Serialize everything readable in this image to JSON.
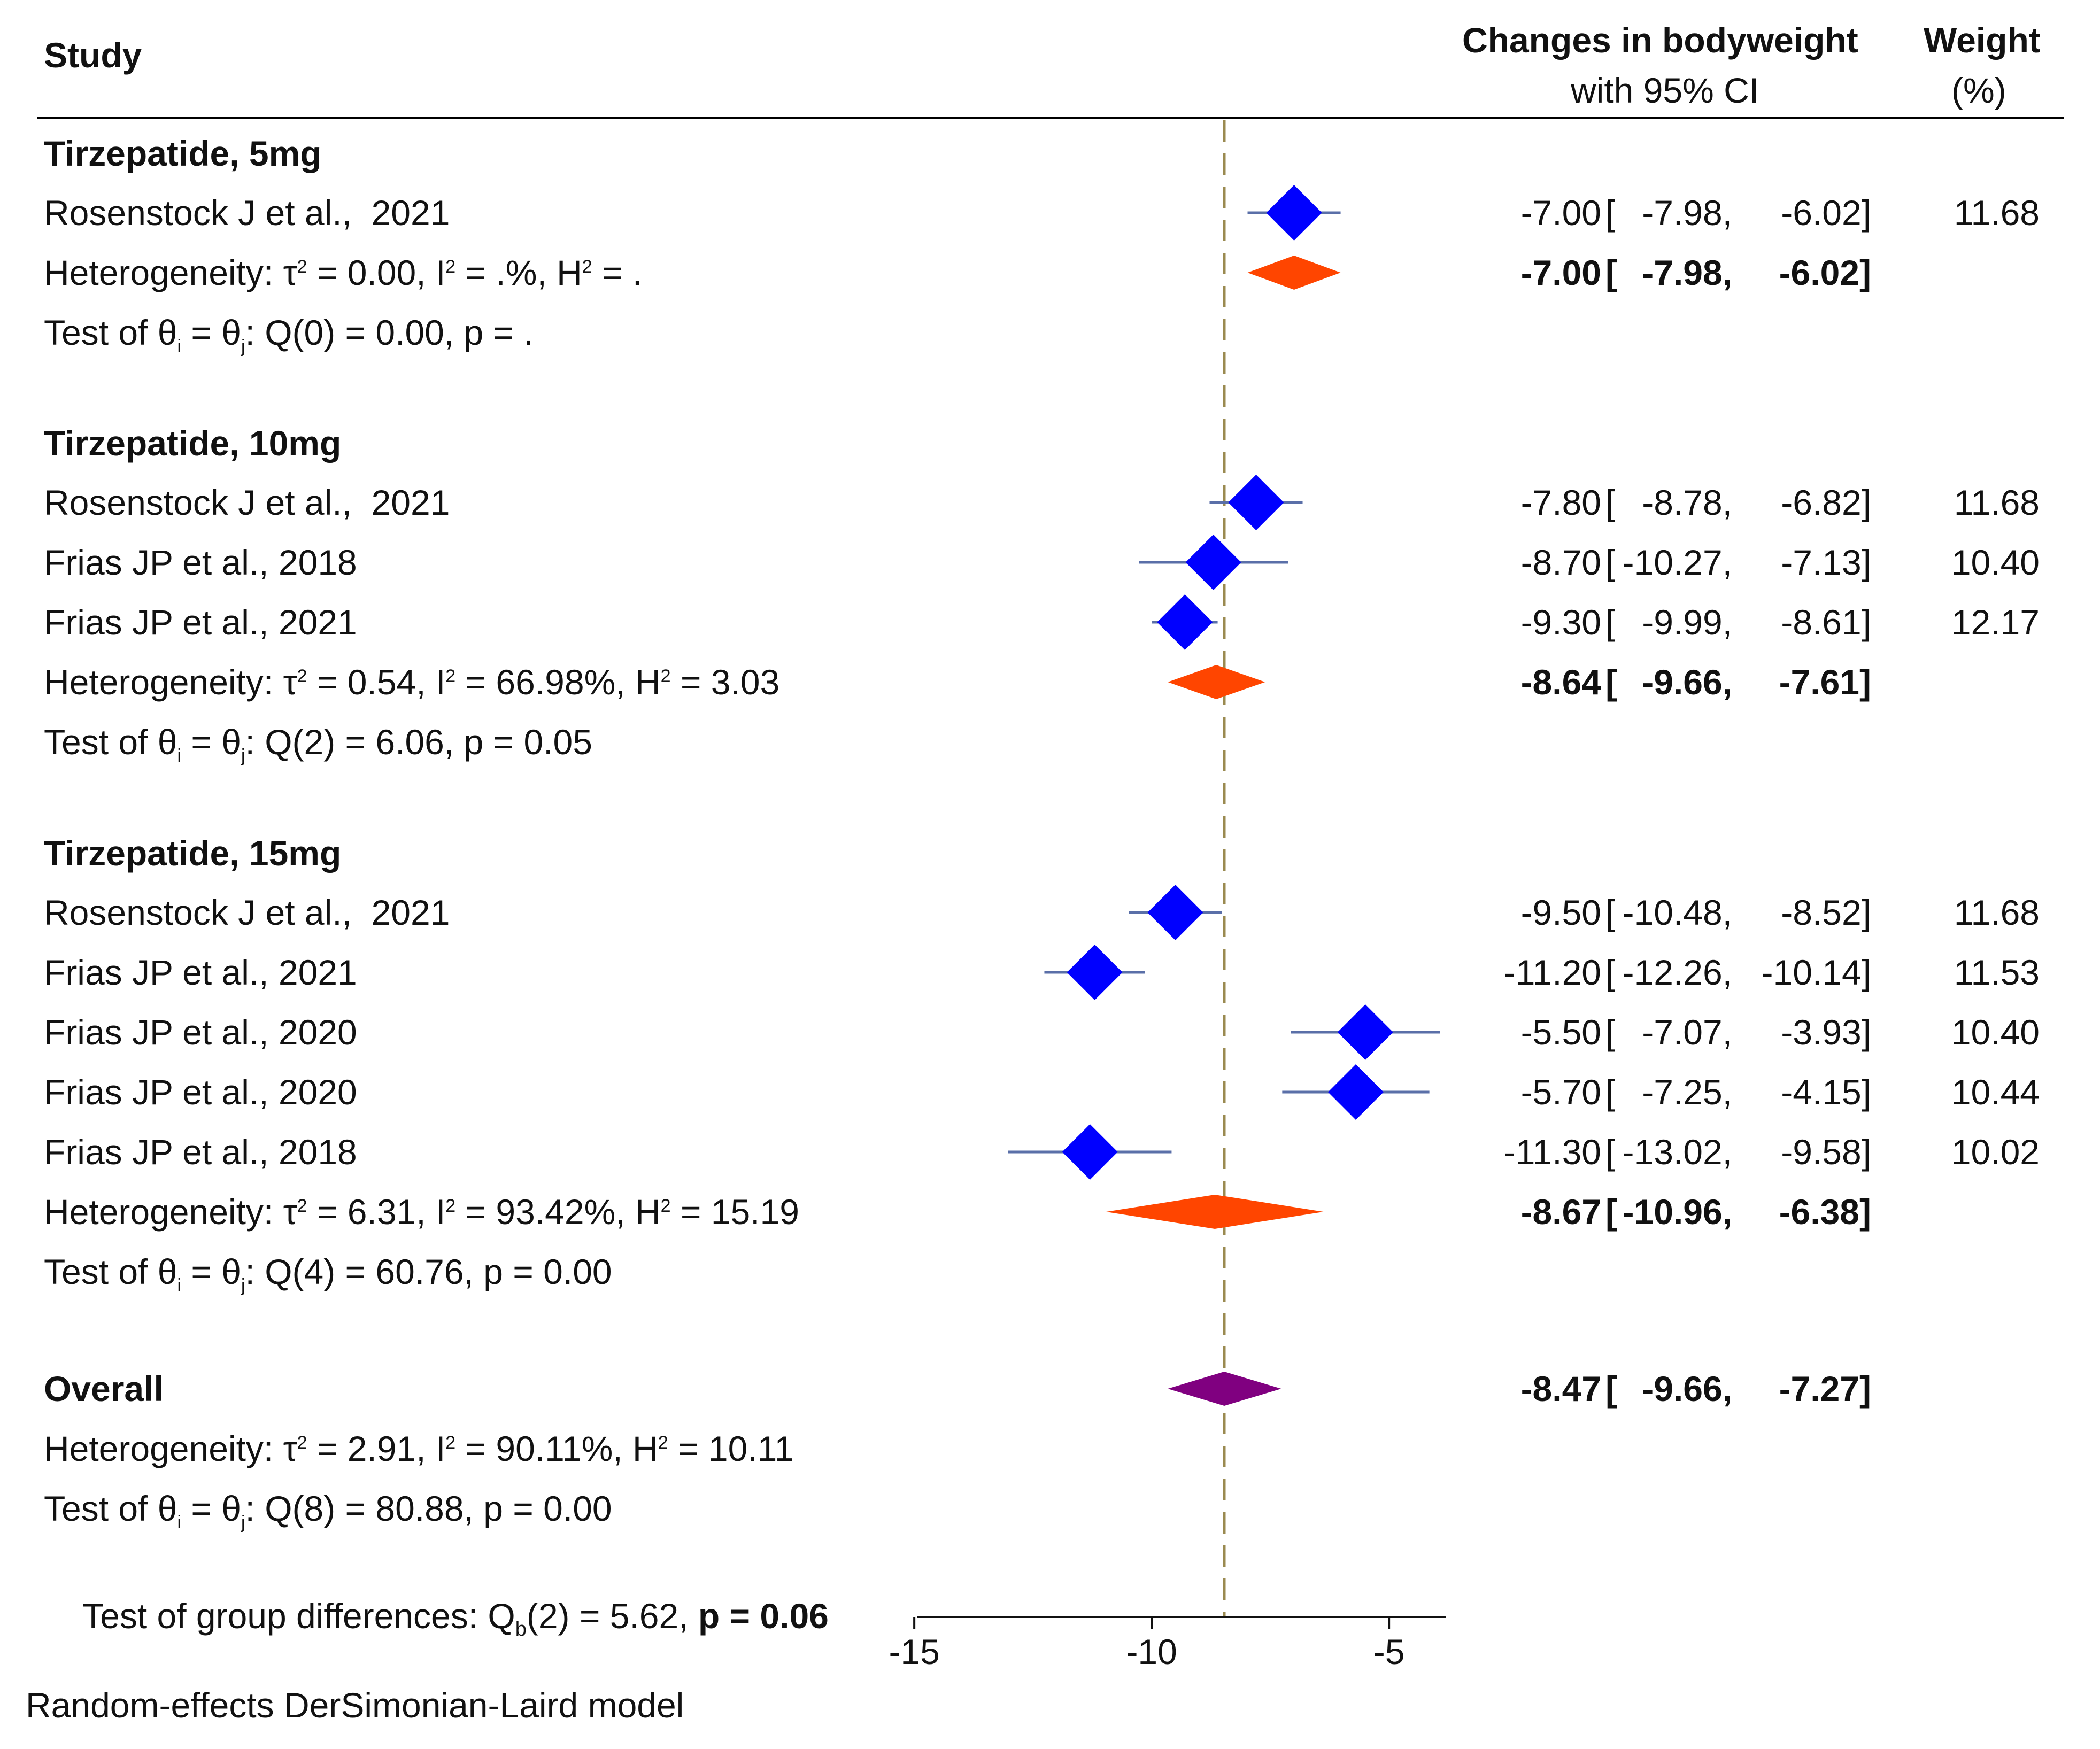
{
  "header": {
    "study": "Study",
    "effect_title": "Changes in bodyweight",
    "effect_sub": "with 95% CI",
    "weight_title": "Weight",
    "weight_sub": "(%)"
  },
  "footnote": "Random-effects DerSimonian-Laird model",
  "group_test": {
    "label": "Test of group differences: Q",
    "sub": "b",
    "rest": "(2) = 5.62,",
    "p": "p = 0.06"
  },
  "colors": {
    "study": "#0000ff",
    "subtotal": "#ff4500",
    "overall": "#800080",
    "ci": "#5a6fa8",
    "refline": "#9a8a50"
  },
  "chart_data": {
    "type": "forest",
    "x_axis": {
      "range": [
        -15,
        -4
      ],
      "ticks": [
        -15,
        -10,
        -5
      ],
      "tick_labels": [
        "-15",
        "-10",
        "-5"
      ]
    },
    "reference_line": -8.47,
    "groups": [
      {
        "title": "Tirzepatide, 5mg",
        "studies": [
          {
            "name": "Rosenstock J et al.,  2021",
            "est": -7.0,
            "lo": -7.98,
            "hi": -6.02,
            "est_text": "-7.00",
            "lo_text": "-7.98,",
            "hi_text": "-6.02]",
            "weight": "11.68"
          }
        ],
        "subtotal": {
          "est": -7.0,
          "lo": -7.98,
          "hi": -6.02,
          "est_text": "-7.00",
          "lo_text": "-7.98,",
          "hi_text": "-6.02]"
        },
        "het": {
          "a": "Heterogeneity: τ",
          "b": " = 0.00, I",
          "c": " = .%, H",
          "d": " = ."
        },
        "test": {
          "a": "Test of θ",
          "b": " = θ",
          "c": ": Q(0) = 0.00, p = ."
        }
      },
      {
        "title": "Tirzepatide, 10mg",
        "studies": [
          {
            "name": "Rosenstock J et al.,  2021",
            "est": -7.8,
            "lo": -8.78,
            "hi": -6.82,
            "est_text": "-7.80",
            "lo_text": "-8.78,",
            "hi_text": "-6.82]",
            "weight": "11.68"
          },
          {
            "name": "Frias JP et al., 2018",
            "est": -8.7,
            "lo": -10.27,
            "hi": -7.13,
            "est_text": "-8.70",
            "lo_text": "-10.27,",
            "hi_text": "-7.13]",
            "weight": "10.40"
          },
          {
            "name": "Frias JP et al., 2021",
            "est": -9.3,
            "lo": -9.99,
            "hi": -8.61,
            "est_text": "-9.30",
            "lo_text": "-9.99,",
            "hi_text": "-8.61]",
            "weight": "12.17"
          }
        ],
        "subtotal": {
          "est": -8.64,
          "lo": -9.66,
          "hi": -7.61,
          "est_text": "-8.64",
          "lo_text": "-9.66,",
          "hi_text": "-7.61]"
        },
        "het": {
          "a": "Heterogeneity: τ",
          "b": " = 0.54, I",
          "c": " = 66.98%, H",
          "d": " = 3.03"
        },
        "test": {
          "a": "Test of θ",
          "b": " = θ",
          "c": ": Q(2) = 6.06, p = 0.05"
        }
      },
      {
        "title": "Tirzepatide, 15mg",
        "studies": [
          {
            "name": "Rosenstock J et al.,  2021",
            "est": -9.5,
            "lo": -10.48,
            "hi": -8.52,
            "est_text": "-9.50",
            "lo_text": "-10.48,",
            "hi_text": "-8.52]",
            "weight": "11.68"
          },
          {
            "name": "Frias JP et al., 2021",
            "est": -11.2,
            "lo": -12.26,
            "hi": -10.14,
            "est_text": "-11.20",
            "lo_text": "-12.26,",
            "hi_text": "-10.14]",
            "weight": "11.53"
          },
          {
            "name": "Frias JP et al., 2020",
            "est": -5.5,
            "lo": -7.07,
            "hi": -3.93,
            "est_text": "-5.50",
            "lo_text": "-7.07,",
            "hi_text": "-3.93]",
            "weight": "10.40"
          },
          {
            "name": "Frias JP et al., 2020",
            "est": -5.7,
            "lo": -7.25,
            "hi": -4.15,
            "est_text": "-5.70",
            "lo_text": "-7.25,",
            "hi_text": "-4.15]",
            "weight": "10.44"
          },
          {
            "name": "Frias JP et al., 2018",
            "est": -11.3,
            "lo": -13.02,
            "hi": -9.58,
            "est_text": "-11.30",
            "lo_text": "-13.02,",
            "hi_text": "-9.58]",
            "weight": "10.02"
          }
        ],
        "subtotal": {
          "est": -8.67,
          "lo": -10.96,
          "hi": -6.38,
          "est_text": "-8.67",
          "lo_text": "-10.96,",
          "hi_text": "-6.38]"
        },
        "het": {
          "a": "Heterogeneity: τ",
          "b": " = 6.31, I",
          "c": " = 93.42%, H",
          "d": " = 15.19"
        },
        "test": {
          "a": "Test of θ",
          "b": " = θ",
          "c": ": Q(4) = 60.76, p = 0.00"
        }
      }
    ],
    "overall": {
      "title": "Overall",
      "est": -8.47,
      "lo": -9.66,
      "hi": -7.27,
      "est_text": "-8.47",
      "lo_text": "-9.66,",
      "hi_text": "-7.27]",
      "het": {
        "a": "Heterogeneity: τ",
        "b": " = 2.91, I",
        "c": " = 90.11%, H",
        "d": " = 10.11"
      },
      "test": {
        "a": "Test of θ",
        "b": " = θ",
        "c": ": Q(8) = 80.88, p = 0.00"
      }
    }
  }
}
